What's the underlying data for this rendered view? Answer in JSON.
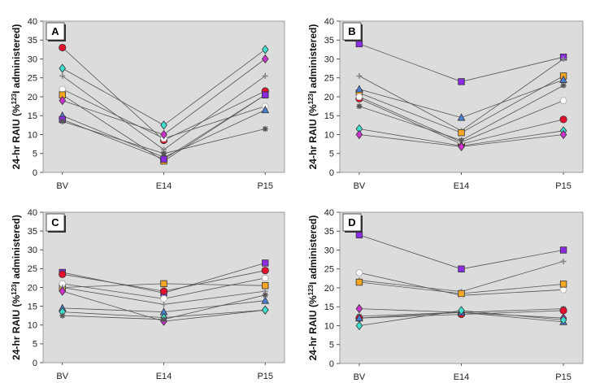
{
  "chart_data": [
    {
      "panel": "A",
      "type": "line",
      "ylabel": "24-hr RAIU (%123I administered)",
      "ylabel_main": "24-hr RAIU (%",
      "ylabel_sup": "123",
      "ylabel_tail": "I administered)",
      "ylim": [
        0,
        40
      ],
      "yticks": [
        0,
        5,
        10,
        15,
        20,
        25,
        30,
        35,
        40
      ],
      "categories": [
        "BV",
        "E14",
        "P15"
      ],
      "series": [
        {
          "name": "s1",
          "marker": "circle",
          "color": "#e8112d",
          "values": [
            33,
            8.5,
            21.5
          ]
        },
        {
          "name": "s2",
          "marker": "diamond",
          "color": "#40e0d0",
          "values": [
            27.5,
            12.5,
            32.5
          ]
        },
        {
          "name": "s3",
          "marker": "plus",
          "color": "#888888",
          "values": [
            25.5,
            6,
            25.5
          ]
        },
        {
          "name": "s4",
          "marker": "hexagon",
          "color": "#ffffff",
          "values": [
            22,
            9,
            17.5
          ]
        },
        {
          "name": "s5",
          "marker": "square",
          "color": "#f5a623",
          "values": [
            20.5,
            3,
            20.5
          ]
        },
        {
          "name": "s6",
          "marker": "diamond",
          "color": "#cc33cc",
          "values": [
            19,
            10,
            30
          ]
        },
        {
          "name": "s7",
          "marker": "triangle",
          "color": "#4a7fd4",
          "values": [
            15,
            4,
            16.5
          ]
        },
        {
          "name": "s8",
          "marker": "square",
          "color": "#8a2be2",
          "values": [
            14,
            3.5,
            20.5
          ]
        },
        {
          "name": "s9",
          "marker": "star",
          "color": "#555555",
          "values": [
            13.5,
            5,
            11.5
          ]
        }
      ]
    },
    {
      "panel": "B",
      "type": "line",
      "ylabel": "24-hr RAIU (%123I administered)",
      "ylabel_main": "24-hr RAIU (%",
      "ylabel_sup": "123",
      "ylabel_tail": "I administered)",
      "ylim": [
        0,
        40
      ],
      "yticks": [
        0,
        5,
        10,
        15,
        20,
        25,
        30,
        35,
        40
      ],
      "categories": [
        "BV",
        "E14",
        "P15"
      ],
      "series": [
        {
          "name": "s1",
          "marker": "square",
          "color": "#8a2be2",
          "values": [
            34,
            24,
            30.5
          ]
        },
        {
          "name": "s2",
          "marker": "plus",
          "color": "#888888",
          "values": [
            25.5,
            11,
            30
          ]
        },
        {
          "name": "s3",
          "marker": "square",
          "color": "#f5a623",
          "values": [
            21,
            10.5,
            25.5
          ]
        },
        {
          "name": "s4",
          "marker": "circle",
          "color": "#e8112d",
          "values": [
            19.5,
            7.5,
            14
          ]
        },
        {
          "name": "s5",
          "marker": "hexagon",
          "color": "#ffffff",
          "values": [
            20,
            8,
            19
          ]
        },
        {
          "name": "s6",
          "marker": "star",
          "color": "#555555",
          "values": [
            17.5,
            8.5,
            23
          ]
        },
        {
          "name": "s7",
          "marker": "triangle",
          "color": "#4a7fd4",
          "values": [
            22,
            14.5,
            24.5
          ]
        },
        {
          "name": "s8",
          "marker": "diamond",
          "color": "#40e0d0",
          "values": [
            11.5,
            7,
            11
          ]
        },
        {
          "name": "s9",
          "marker": "diamond",
          "color": "#cc33cc",
          "values": [
            10,
            6.8,
            10
          ]
        }
      ]
    },
    {
      "panel": "C",
      "type": "line",
      "ylabel": "24-hr RAIU (%123I administered)",
      "ylabel_main": "24-hr RAIU (%",
      "ylabel_sup": "123",
      "ylabel_tail": "I administered)",
      "ylim": [
        0,
        40
      ],
      "yticks": [
        0,
        5,
        10,
        15,
        20,
        25,
        30,
        35,
        40
      ],
      "categories": [
        "BV",
        "E14",
        "P15"
      ],
      "series": [
        {
          "name": "s1",
          "marker": "square",
          "color": "#8a2be2",
          "values": [
            24,
            18.5,
            26.5
          ]
        },
        {
          "name": "s2",
          "marker": "circle",
          "color": "#e8112d",
          "values": [
            23.5,
            19,
            24.5
          ]
        },
        {
          "name": "s3",
          "marker": "square",
          "color": "#f5a623",
          "values": [
            20,
            21,
            20.5
          ]
        },
        {
          "name": "s4",
          "marker": "hexagon",
          "color": "#ffffff",
          "values": [
            21,
            17,
            22.5
          ]
        },
        {
          "name": "s5",
          "marker": "plus",
          "color": "#888888",
          "values": [
            20,
            15.5,
            19
          ]
        },
        {
          "name": "s6",
          "marker": "diamond",
          "color": "#cc33cc",
          "values": [
            19,
            11,
            14
          ]
        },
        {
          "name": "s7",
          "marker": "triangle",
          "color": "#4a7fd4",
          "values": [
            14.5,
            13.5,
            16.5
          ]
        },
        {
          "name": "s8",
          "marker": "diamond",
          "color": "#40e0d0",
          "values": [
            13.5,
            12,
            14
          ]
        },
        {
          "name": "s9",
          "marker": "star",
          "color": "#555555",
          "values": [
            12.5,
            11.5,
            18
          ]
        }
      ]
    },
    {
      "panel": "D",
      "type": "line",
      "ylabel": "24-hr RAIU (%123I administered)",
      "ylabel_main": "24-hr RAIU (%",
      "ylabel_sup": "123",
      "ylabel_tail": "I administered)",
      "ylim": [
        0,
        40
      ],
      "yticks": [
        0,
        5,
        10,
        15,
        20,
        25,
        30,
        35,
        40
      ],
      "categories": [
        "BV",
        "E14",
        "P15"
      ],
      "series": [
        {
          "name": "s1",
          "marker": "square",
          "color": "#8a2be2",
          "values": [
            34,
            25,
            30
          ]
        },
        {
          "name": "s2",
          "marker": "plus",
          "color": "#888888",
          "values": [
            22,
            19,
            27
          ]
        },
        {
          "name": "s3",
          "marker": "hexagon",
          "color": "#ffffff",
          "values": [
            24,
            18,
            19.5
          ]
        },
        {
          "name": "s4",
          "marker": "square",
          "color": "#f5a623",
          "values": [
            21.5,
            18.5,
            21
          ]
        },
        {
          "name": "s5",
          "marker": "diamond",
          "color": "#cc33cc",
          "values": [
            14.5,
            13.5,
            12
          ]
        },
        {
          "name": "s6",
          "marker": "star",
          "color": "#555555",
          "values": [
            12.5,
            13.5,
            14.5
          ]
        },
        {
          "name": "s7",
          "marker": "circle",
          "color": "#e8112d",
          "values": [
            12,
            13,
            14
          ]
        },
        {
          "name": "s8",
          "marker": "triangle",
          "color": "#4a7fd4",
          "values": [
            12,
            13.5,
            11
          ]
        },
        {
          "name": "s9",
          "marker": "diamond",
          "color": "#40e0d0",
          "values": [
            10,
            14,
            11.5
          ]
        }
      ]
    }
  ]
}
